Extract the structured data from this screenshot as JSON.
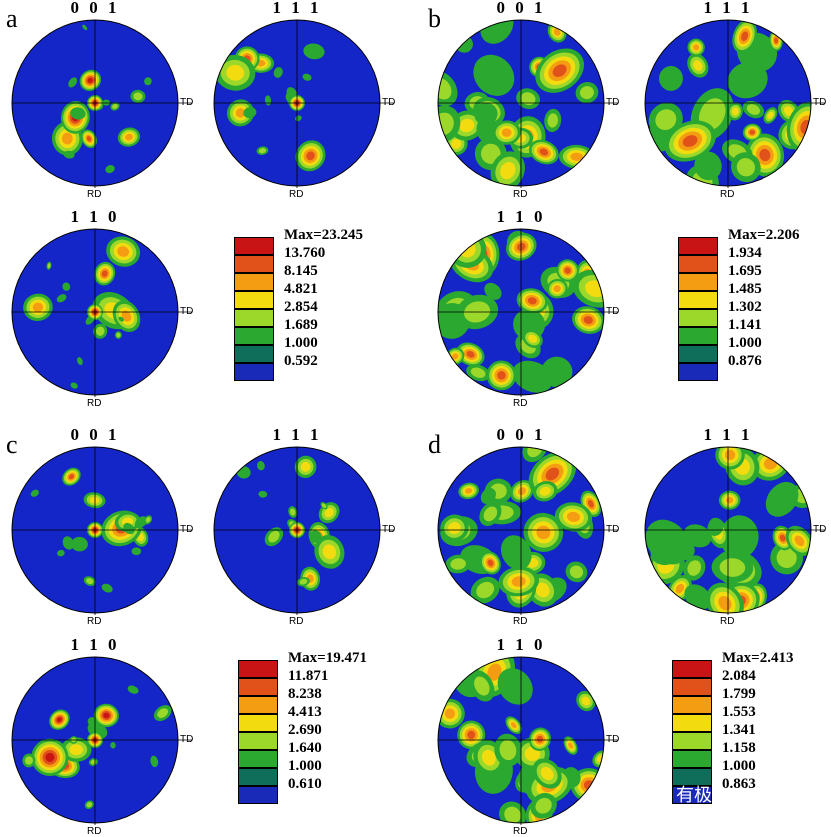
{
  "colors": {
    "bg": "#1426c8",
    "levels": [
      "#1a2ab8",
      "#0e6e5a",
      "#2aa830",
      "#9bd82a",
      "#f2dc10",
      "#f49c12",
      "#e0521a",
      "#c81414"
    ]
  },
  "axes": {
    "td": "TD",
    "rd": "RD"
  },
  "panels": [
    {
      "letter": "a",
      "poles": [
        "0 0 1",
        "1 1 1",
        "1 1 0"
      ],
      "legend": [
        "Max=23.245",
        "13.760",
        "8.145",
        "4.821",
        "2.854",
        "1.689",
        "1.000",
        "0.592"
      ],
      "textured": true
    },
    {
      "letter": "b",
      "poles": [
        "0 0 1",
        "1 1 1",
        "1 1 0"
      ],
      "legend": [
        "Max=2.206",
        "1.934",
        "1.695",
        "1.485",
        "1.302",
        "1.141",
        "1.000",
        "0.876"
      ],
      "textured": false
    },
    {
      "letter": "c",
      "poles": [
        "0 0 1",
        "1 1 1",
        "1 1 0"
      ],
      "legend": [
        "Max=19.471",
        "11.871",
        "8.238",
        "4.413",
        "2.690",
        "1.640",
        "1.000",
        "0.610"
      ],
      "textured": true
    },
    {
      "letter": "d",
      "poles": [
        "0 0 1",
        "1 1 1",
        "1 1 0"
      ],
      "legend": [
        "Max=2.413",
        "2.084",
        "1.799",
        "1.553",
        "1.341",
        "1.158",
        "1.000",
        "0.863"
      ],
      "textured": false
    }
  ],
  "watermark": "有极"
}
